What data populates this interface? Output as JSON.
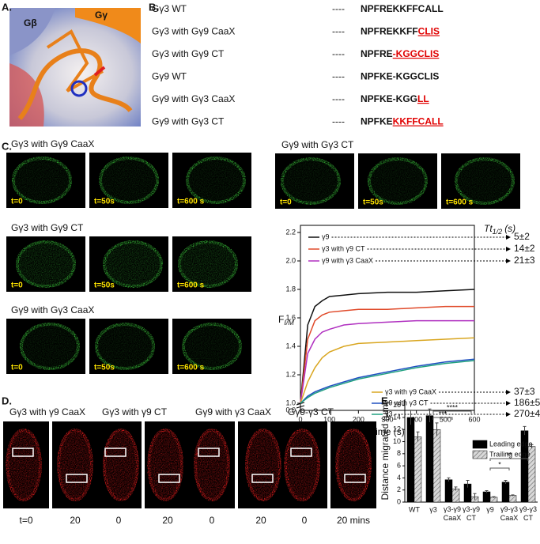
{
  "panels": {
    "a": {
      "label": "A.",
      "beta": "Gβ",
      "gamma": "Gγ"
    },
    "b": {
      "label": "B.",
      "rows": [
        {
          "name": "Gγ3 WT",
          "dashes": "----",
          "seq": "NPFREKKFFCALL"
        },
        {
          "name": "Gγ3 with Gγ9 CaaX",
          "dashes": "----",
          "seq": "NPFREKKFF",
          "mut": "CLIS"
        },
        {
          "name": "Gγ3 with Gγ9 CT",
          "dashes": "----",
          "seq": "NPFRE",
          "mut": "-KGGCLIS"
        },
        {
          "name": "Gγ9 WT",
          "dashes": "----",
          "seq": "NPFKE-KGGCLIS"
        },
        {
          "name": "Gγ9 with Gγ3 CaaX",
          "dashes": "----",
          "seq": "NPFKE-KGG",
          "mut": "LL"
        },
        {
          "name": "Gγ9 with Gγ3 CT",
          "dashes": "----",
          "seq": "NPFKE",
          "mut": "KKFFCALL"
        }
      ]
    },
    "c": {
      "label": "C.",
      "groups": [
        {
          "title": "Gγ3 with Gγ9 CaaX",
          "times": [
            "t=0",
            "t=50s",
            "t=600 s"
          ]
        },
        {
          "title": "Gγ3 with Gγ9 CT",
          "times": [
            "t=0",
            "t=50s",
            "t=600 s"
          ]
        },
        {
          "title": "Gγ9 with Gγ3 CaaX",
          "times": [
            "t=0",
            "t=50s",
            "t=600 s"
          ]
        },
        {
          "title": "Gγ9 with Gγ3 CT",
          "times": [
            "t=0",
            "t=50s",
            "t=600 s"
          ]
        }
      ]
    },
    "d": {
      "label": "D.",
      "headers": [
        "Gγ3 with γ9 CaaX",
        "Gγ3 with γ9 CT",
        "Gγ9 with γ3 CaaX",
        "Gγ9-γ3 CT"
      ],
      "times": [
        "t=0",
        "20",
        "0",
        "20",
        "0",
        "20",
        "0",
        "20 mins"
      ]
    },
    "e": {
      "label": "E"
    }
  },
  "chart_data": [
    {
      "type": "line",
      "ylabel": "F",
      "ylabel_sub": "I/M",
      "xlabel": "Time (s)",
      "halftime_title": "Tt",
      "halftime_sub": "1/2",
      "halftime_unit": "(s)",
      "axis_break_label": "0.0",
      "x": [
        0,
        25,
        50,
        75,
        100,
        150,
        200,
        300,
        400,
        500,
        600
      ],
      "xlim": [
        0,
        600
      ],
      "xticks": [
        0,
        100,
        200,
        300,
        400,
        500,
        600
      ],
      "ylim": [
        0.95,
        2.25
      ],
      "yticks": [
        {
          "value": 1,
          "label": "1.0"
        },
        {
          "value": 1.2,
          "label": "1.2"
        },
        {
          "value": 1.4,
          "label": "1.4"
        },
        {
          "value": 1.6,
          "label": "1.6"
        },
        {
          "value": 1.8,
          "label": "1.8"
        },
        {
          "value": 2,
          "label": "2.0"
        },
        {
          "value": 2.2,
          "label": "2.2"
        }
      ],
      "series": [
        {
          "name": "γ9",
          "color": "#111111",
          "halftime": "5±2",
          "values": [
            1.0,
            1.55,
            1.68,
            1.72,
            1.75,
            1.76,
            1.77,
            1.78,
            1.78,
            1.79,
            1.8
          ]
        },
        {
          "name": "γ3 with γ9 CT",
          "color": "#e04a2a",
          "halftime": "14±2",
          "values": [
            1.0,
            1.45,
            1.58,
            1.62,
            1.64,
            1.65,
            1.66,
            1.66,
            1.67,
            1.68,
            1.68
          ]
        },
        {
          "name": "γ9 with γ3 CaaX",
          "color": "#b030c0",
          "halftime": "21±3",
          "values": [
            1.0,
            1.35,
            1.45,
            1.5,
            1.52,
            1.55,
            1.56,
            1.57,
            1.58,
            1.58,
            1.58
          ]
        },
        {
          "name": "γ3 with γ9 CaaX",
          "color": "#d9a620",
          "halftime": "37±3",
          "values": [
            1.0,
            1.15,
            1.25,
            1.32,
            1.36,
            1.4,
            1.42,
            1.43,
            1.44,
            1.45,
            1.46
          ]
        },
        {
          "name": "γ9 with γ3 CT",
          "color": "#2050c0",
          "halftime": "186±5",
          "values": [
            1.0,
            1.05,
            1.08,
            1.1,
            1.12,
            1.15,
            1.18,
            1.22,
            1.26,
            1.29,
            1.31
          ]
        },
        {
          "name": "γ3",
          "color": "#20a080",
          "halftime": "270±4",
          "values": [
            1.0,
            1.04,
            1.07,
            1.09,
            1.11,
            1.14,
            1.17,
            1.21,
            1.25,
            1.28,
            1.3
          ]
        }
      ]
    },
    {
      "type": "bar",
      "ylabel": "Distance migrated (μm)",
      "categories": [
        "WT",
        "γ3",
        "γ3-γ9 CaaX",
        "γ3-γ9 CT",
        "γ9",
        "γ9-γ3 CaaX",
        "γ9-γ3 CT"
      ],
      "ylim": [
        0,
        17
      ],
      "yticks": [
        0,
        2,
        4,
        6,
        8,
        10,
        12,
        14,
        16
      ],
      "series": [
        {
          "name": "Leading edge",
          "color": "#000000",
          "values": [
            14,
            14.3,
            3.7,
            3,
            1.7,
            3.3,
            11.8
          ],
          "errors": [
            1.2,
            1.1,
            0.3,
            0.6,
            0.2,
            0.3,
            0.7
          ]
        },
        {
          "name": "Trailing edge",
          "color": "#bbbbbb",
          "values": [
            10.8,
            12,
            2.2,
            0.9,
            0.8,
            1.1,
            9.2
          ],
          "errors": [
            0.8,
            1.1,
            0.3,
            0.5,
            0.1,
            0.1,
            0.3
          ]
        }
      ],
      "significance": [
        {
          "label": "****",
          "from": 1,
          "to": 3
        },
        {
          "label": "***",
          "from": 1,
          "to": 2
        },
        {
          "label": "**",
          "from": 4,
          "to": 6
        },
        {
          "label": "*",
          "from": 4,
          "to": 5
        }
      ]
    }
  ]
}
